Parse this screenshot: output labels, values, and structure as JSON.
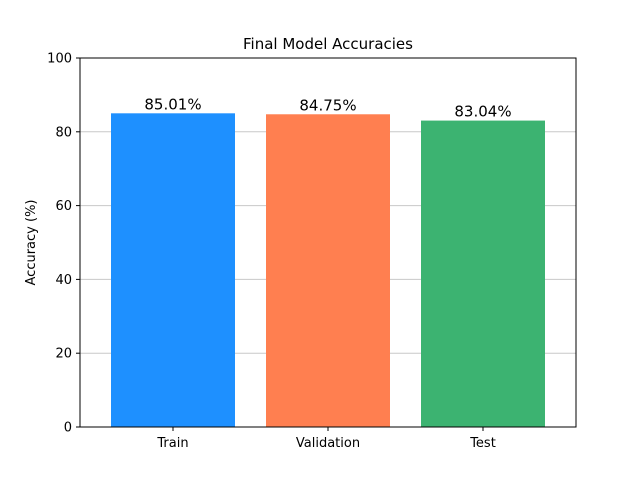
{
  "chart_data": {
    "type": "bar",
    "title": "Final Model Accuracies",
    "xlabel": "",
    "ylabel": "Accuracy (%)",
    "ylim": [
      0,
      100
    ],
    "yticks": [
      "0",
      "20",
      "40",
      "60",
      "80",
      "100"
    ],
    "grid": "horizontal",
    "categories": [
      "Train",
      "Validation",
      "Test"
    ],
    "values": [
      85.01,
      84.75,
      83.04
    ],
    "data_labels": [
      "85.01%",
      "84.75%",
      "83.04%"
    ],
    "colors": [
      "#1E90FF",
      "#FF7F50",
      "#3CB371"
    ]
  }
}
